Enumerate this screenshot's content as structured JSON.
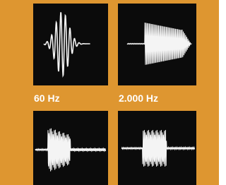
{
  "labels": [
    "60 Hz",
    "2.000 Hz"
  ]
}
